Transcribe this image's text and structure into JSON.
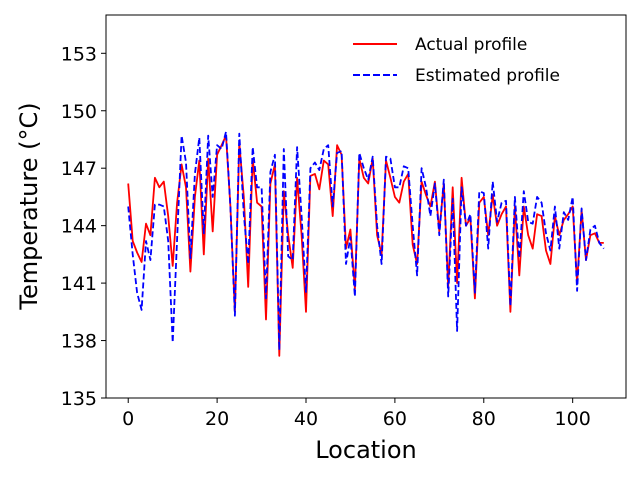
{
  "chart_data": {
    "type": "line",
    "xlabel": "Location",
    "ylabel": "Temperature (°C)",
    "xlim": [
      -5,
      112
    ],
    "ylim": [
      135,
      155
    ],
    "xticks": [
      0,
      20,
      40,
      60,
      80,
      100
    ],
    "yticks": [
      135,
      138,
      141,
      144,
      147,
      150,
      153
    ],
    "grid": false,
    "legend_position": "top-right",
    "series": [
      {
        "name": "Actual profile",
        "color": "#ff0000",
        "style": "solid",
        "x": [
          0,
          1,
          2,
          3,
          4,
          5,
          6,
          7,
          8,
          9,
          10,
          11,
          12,
          13,
          14,
          15,
          16,
          17,
          18,
          19,
          20,
          21,
          22,
          23,
          24,
          25,
          26,
          27,
          28,
          29,
          30,
          31,
          32,
          33,
          34,
          35,
          36,
          37,
          38,
          39,
          40,
          41,
          42,
          43,
          44,
          45,
          46,
          47,
          48,
          49,
          50,
          51,
          52,
          53,
          54,
          55,
          56,
          57,
          58,
          59,
          60,
          61,
          62,
          63,
          64,
          65,
          66,
          67,
          68,
          69,
          70,
          71,
          72,
          73,
          74,
          75,
          76,
          77,
          78,
          79,
          80,
          81,
          82,
          83,
          84,
          85,
          86,
          87,
          88,
          89,
          90,
          91,
          92,
          93,
          94,
          95,
          96,
          97,
          98,
          99,
          100,
          101,
          102,
          103,
          104,
          105,
          106,
          107
        ],
        "y": [
          146.2,
          143.2,
          142.6,
          142.1,
          144.1,
          143.5,
          146.5,
          146,
          146.3,
          144.5,
          141.9,
          145.2,
          147.2,
          146,
          141.6,
          145.5,
          147.4,
          142.5,
          147.5,
          143.7,
          147.7,
          148.2,
          148.7,
          145,
          139.5,
          148.3,
          145.5,
          140.8,
          147.5,
          145.2,
          145,
          139.1,
          146.2,
          147.2,
          137.2,
          145.8,
          143.5,
          141.8,
          146.5,
          143.5,
          139.5,
          146.6,
          146.7,
          145.9,
          147.4,
          147.2,
          144.5,
          148.2,
          147.7,
          142.8,
          143.8,
          140.7,
          147.5,
          146.5,
          146.2,
          147.5,
          143.5,
          142.5,
          147.4,
          146.5,
          145.5,
          145.2,
          146.3,
          146.7,
          143,
          142,
          146.3,
          145.6,
          145,
          146.3,
          143.7,
          146.2,
          140.8,
          146,
          141,
          146.5,
          144,
          144.4,
          140.2,
          145.2,
          145.5,
          143.5,
          145.6,
          144,
          144.6,
          145,
          139.5,
          145,
          141.4,
          145,
          143.5,
          142.8,
          144.6,
          144.5,
          142.7,
          142,
          144.5,
          143.5,
          144.3,
          144.6,
          145,
          141,
          144.8,
          142.2,
          143.5,
          143.6,
          143.1,
          143.1
        ]
      },
      {
        "name": "Estimated profile",
        "color": "#0000ff",
        "style": "dashed",
        "x": [
          0,
          1,
          2,
          3,
          4,
          5,
          6,
          7,
          8,
          9,
          10,
          11,
          12,
          13,
          14,
          15,
          16,
          17,
          18,
          19,
          20,
          21,
          22,
          23,
          24,
          25,
          26,
          27,
          28,
          29,
          30,
          31,
          32,
          33,
          34,
          35,
          36,
          37,
          38,
          39,
          40,
          41,
          42,
          43,
          44,
          45,
          46,
          47,
          48,
          49,
          50,
          51,
          52,
          53,
          54,
          55,
          56,
          57,
          58,
          59,
          60,
          61,
          62,
          63,
          64,
          65,
          66,
          67,
          68,
          69,
          70,
          71,
          72,
          73,
          74,
          75,
          76,
          77,
          78,
          79,
          80,
          81,
          82,
          83,
          84,
          85,
          86,
          87,
          88,
          89,
          90,
          91,
          92,
          93,
          94,
          95,
          96,
          97,
          98,
          99,
          100,
          101,
          102,
          103,
          104,
          105,
          106,
          107
        ],
        "y": [
          145,
          142.5,
          140.5,
          139.6,
          143.2,
          142.2,
          145.1,
          145.1,
          145,
          143.2,
          137.9,
          143.3,
          148.7,
          147.3,
          142.3,
          146.7,
          148.6,
          143.6,
          148.7,
          145.5,
          148.2,
          148,
          148.9,
          145,
          139.3,
          148.8,
          144.6,
          142,
          148.1,
          146,
          146,
          140.2,
          146.8,
          147.7,
          137.5,
          148,
          142.4,
          142.2,
          148.1,
          144.5,
          140.5,
          147,
          147.3,
          146.9,
          148,
          148.2,
          145,
          147.8,
          147.9,
          142,
          143.4,
          140.3,
          147.8,
          147,
          146.4,
          147.6,
          144,
          142,
          147.6,
          147.5,
          146,
          146,
          147.1,
          147,
          144,
          141.4,
          147,
          146,
          144.5,
          146.2,
          143.5,
          146.4,
          140.3,
          145.4,
          138.5,
          146,
          144,
          144.6,
          140.5,
          145.8,
          145.7,
          142.8,
          146.3,
          144.2,
          145.2,
          145.3,
          139.8,
          145.5,
          142.3,
          145.8,
          144.2,
          144.1,
          145.5,
          145.2,
          143.6,
          142.7,
          145,
          142.8,
          144.7,
          144.3,
          145.5,
          140.6,
          144.9,
          142.2,
          143.8,
          144,
          143.1,
          142.8
        ]
      }
    ]
  }
}
